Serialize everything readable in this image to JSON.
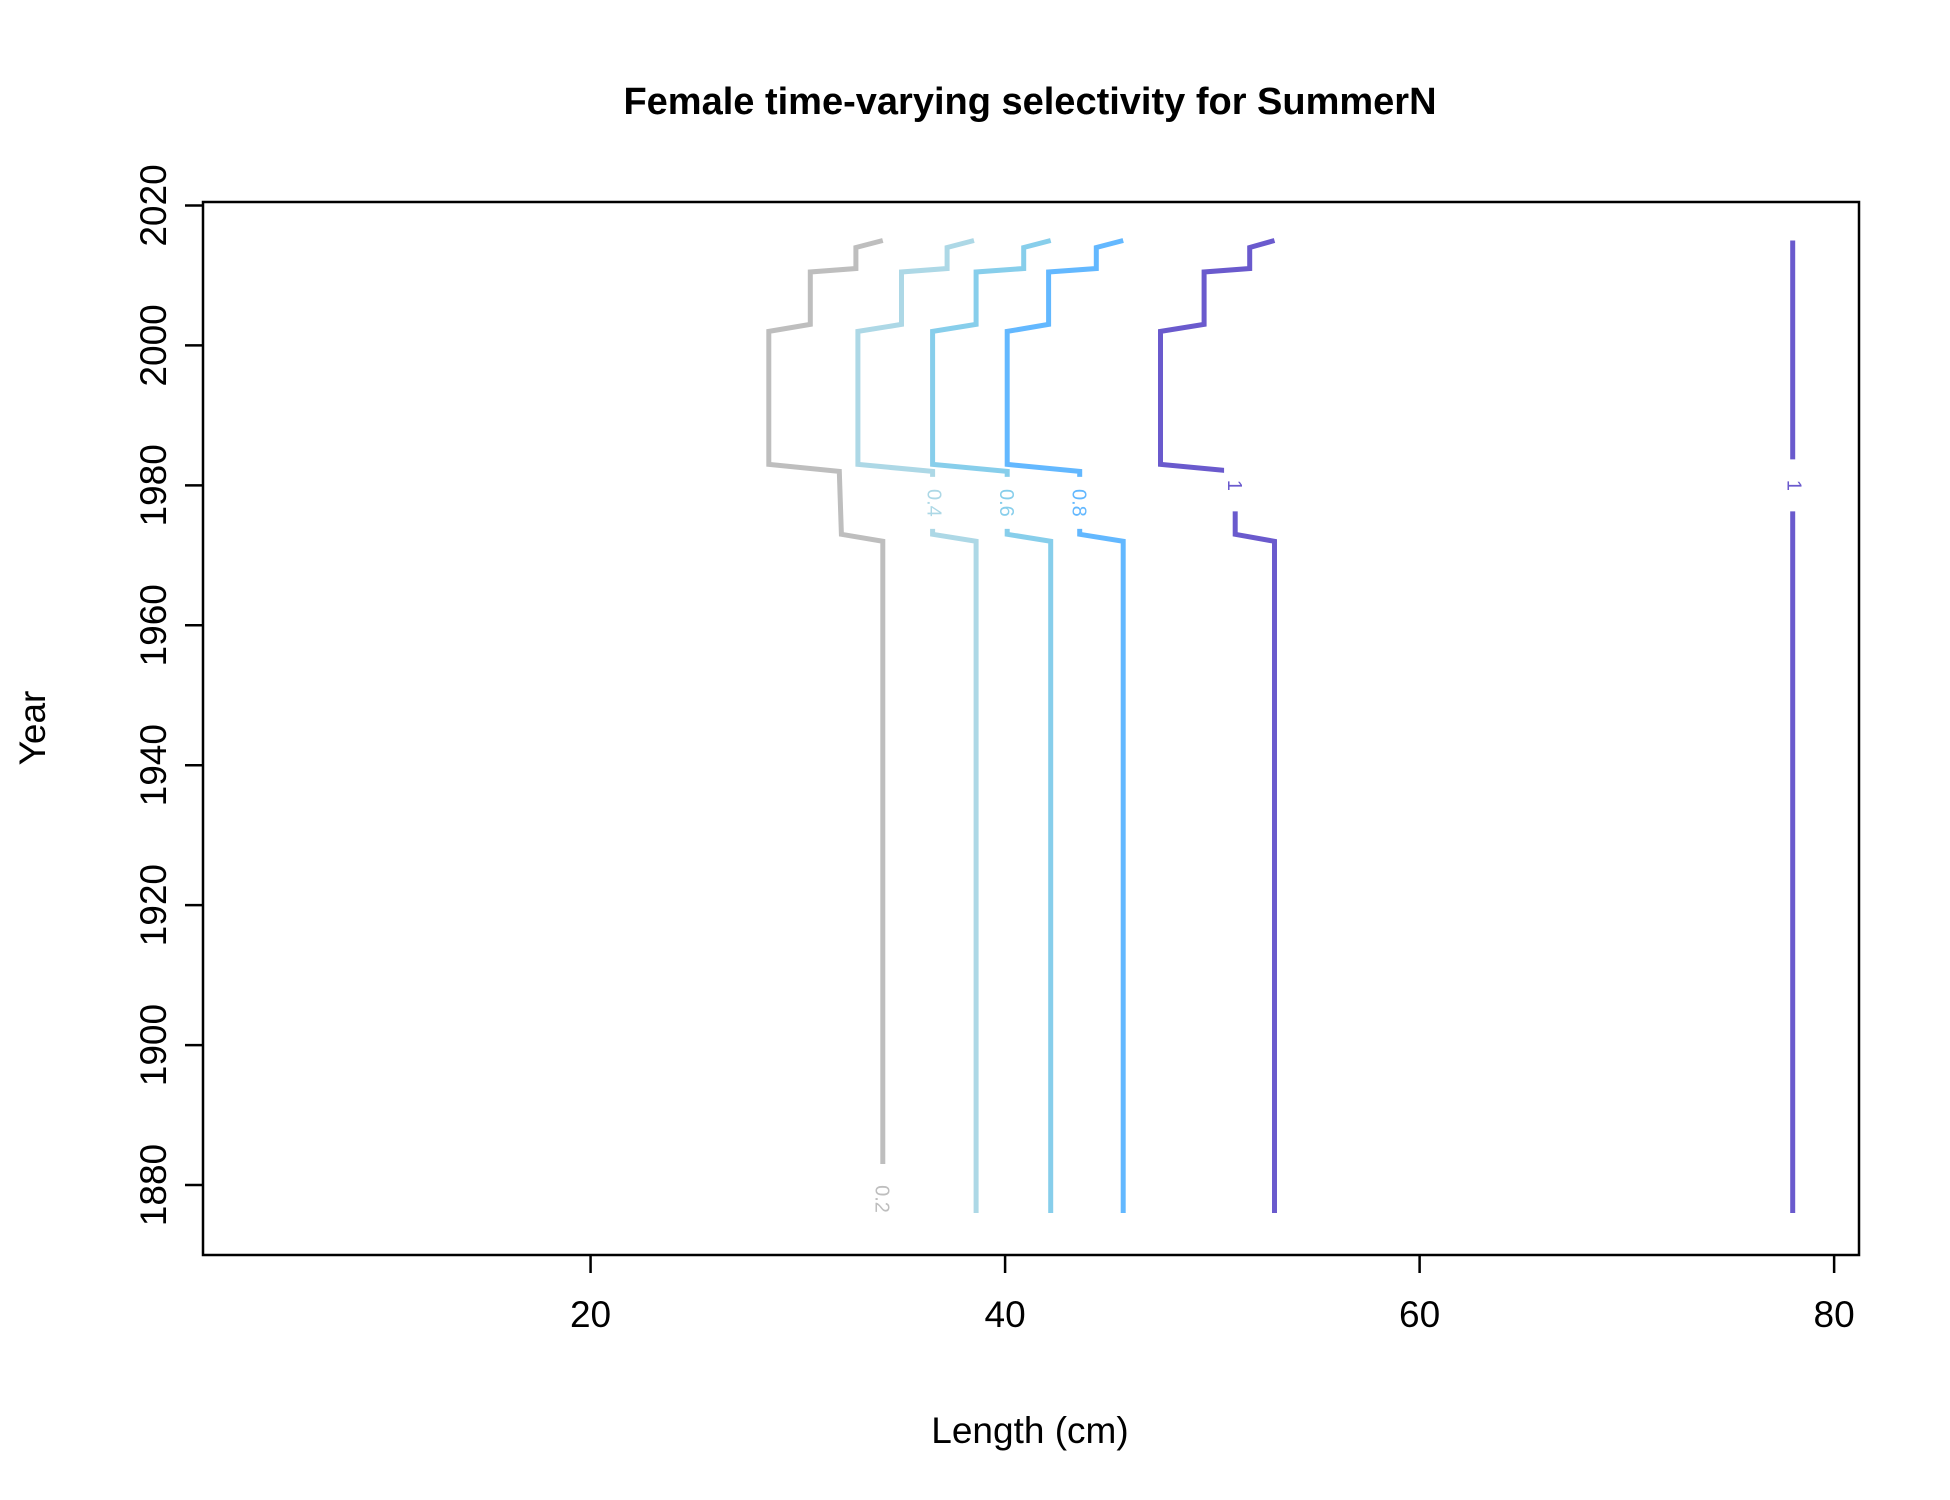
{
  "chart_data": {
    "type": "line",
    "title": "Female time-varying selectivity for SummerN",
    "xlabel": "Length (cm)",
    "ylabel": "Year",
    "xlim": [
      1.3,
      81.2
    ],
    "ylim": [
      1870,
      2020.5
    ],
    "x_ticks": [
      20,
      40,
      60,
      80
    ],
    "y_ticks": [
      1880,
      1900,
      1920,
      1940,
      1960,
      1980,
      2000,
      2020
    ],
    "y_tick_orientation": "rotated-vertical",
    "grid": false,
    "legend": "none",
    "label_break_year": 1978.5,
    "series": [
      {
        "name": "0.2",
        "color": "#bebebe",
        "label_position": [
          34,
          1878
        ],
        "points": [
          [
            34.1,
            2015
          ],
          [
            32.8,
            2014
          ],
          [
            32.8,
            2011
          ],
          [
            30.6,
            2010.5
          ],
          [
            30.6,
            2003
          ],
          [
            28.6,
            2002
          ],
          [
            28.6,
            1983
          ],
          [
            32.0,
            1982
          ],
          [
            32.1,
            1973
          ],
          [
            34.1,
            1972
          ],
          [
            34.1,
            1883
          ]
        ]
      },
      {
        "name": "0.4",
        "color": "#add8e6",
        "label_position": [
          36.5,
          1977.5
        ],
        "points": [
          [
            38.5,
            2015
          ],
          [
            37.2,
            2014
          ],
          [
            37.2,
            2011
          ],
          [
            35.0,
            2010.5
          ],
          [
            35.0,
            2003
          ],
          [
            32.9,
            2002
          ],
          [
            32.9,
            1983
          ],
          [
            36.5,
            1982
          ],
          [
            36.5,
            1973
          ],
          [
            38.6,
            1972
          ],
          [
            38.6,
            1876
          ]
        ]
      },
      {
        "name": "0.6",
        "color": "#87ceeb",
        "label_position": [
          40.0,
          1977.5
        ],
        "points": [
          [
            42.2,
            2015
          ],
          [
            40.9,
            2014
          ],
          [
            40.9,
            2011
          ],
          [
            38.6,
            2010.5
          ],
          [
            38.6,
            2003
          ],
          [
            36.5,
            2002
          ],
          [
            36.5,
            1983
          ],
          [
            40.1,
            1982
          ],
          [
            40.1,
            1973
          ],
          [
            42.2,
            1972
          ],
          [
            42.2,
            1876
          ]
        ]
      },
      {
        "name": "0.8",
        "color": "#63b8ff",
        "label_position": [
          43.5,
          1977.5
        ],
        "points": [
          [
            45.7,
            2015
          ],
          [
            44.4,
            2014
          ],
          [
            44.4,
            2011
          ],
          [
            42.1,
            2010.5
          ],
          [
            42.1,
            2003
          ],
          [
            40.1,
            2002
          ],
          [
            40.1,
            1983
          ],
          [
            43.6,
            1982
          ],
          [
            43.6,
            1973
          ],
          [
            45.7,
            1972
          ],
          [
            45.7,
            1876
          ]
        ]
      },
      {
        "name": "1",
        "color": "#6a5acd",
        "label_position": [
          51.0,
          1980
        ],
        "points": [
          [
            53.0,
            2015
          ],
          [
            51.8,
            2014
          ],
          [
            51.8,
            2011
          ],
          [
            49.6,
            2010.5
          ],
          [
            49.6,
            2003
          ],
          [
            47.5,
            2002
          ],
          [
            47.5,
            1983
          ],
          [
            51.1,
            1982
          ],
          [
            51.1,
            1973
          ],
          [
            53.0,
            1972
          ],
          [
            53.0,
            1876
          ]
        ]
      },
      {
        "name": "1",
        "color": "#6a5acd",
        "label_position": [
          78.0,
          1980
        ],
        "points": [
          [
            78.0,
            2015
          ],
          [
            78.0,
            1876
          ]
        ]
      }
    ]
  }
}
